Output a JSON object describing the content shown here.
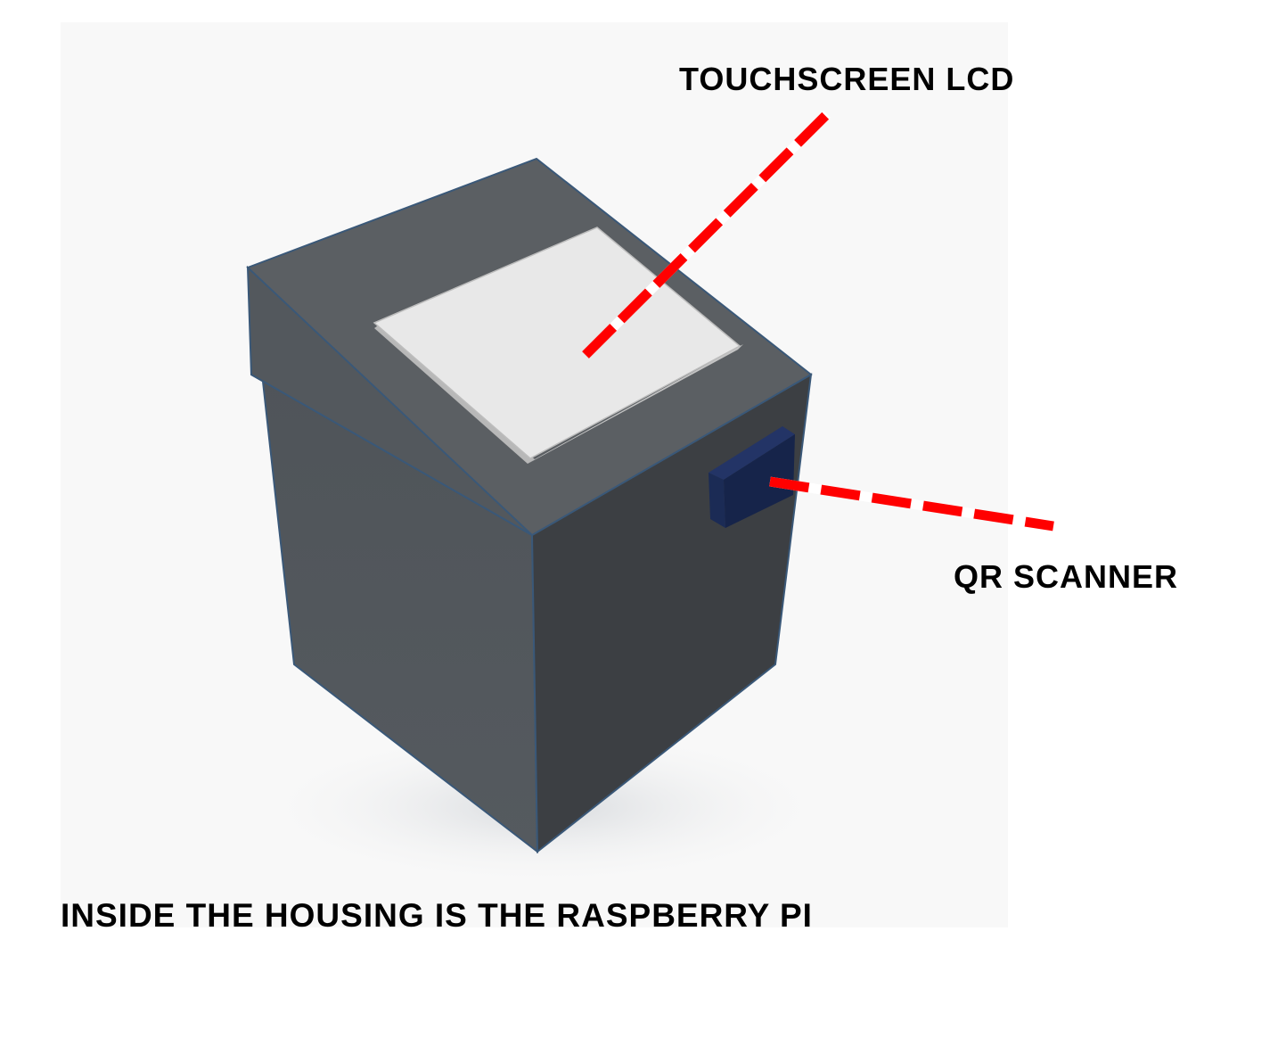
{
  "labels": {
    "touchscreen": "TOUCHSCREEN LCD",
    "qr_scanner": "QR SCANNER",
    "caption": "INSIDE THE HOUSING IS THE RASPBERRY PI"
  },
  "colors": {
    "background": "#f8f8f8",
    "housing_front": "#50555a",
    "housing_right": "#3c3f43",
    "housing_top": "#5c6064",
    "edge": "#3a5878",
    "screen": "#e8e8e8",
    "scanner": "#16244a",
    "leader_line": "#ff0000"
  },
  "icons": {
    "housing": "kiosk-housing-icon",
    "screen": "touchscreen-icon",
    "scanner": "qr-scanner-icon"
  }
}
